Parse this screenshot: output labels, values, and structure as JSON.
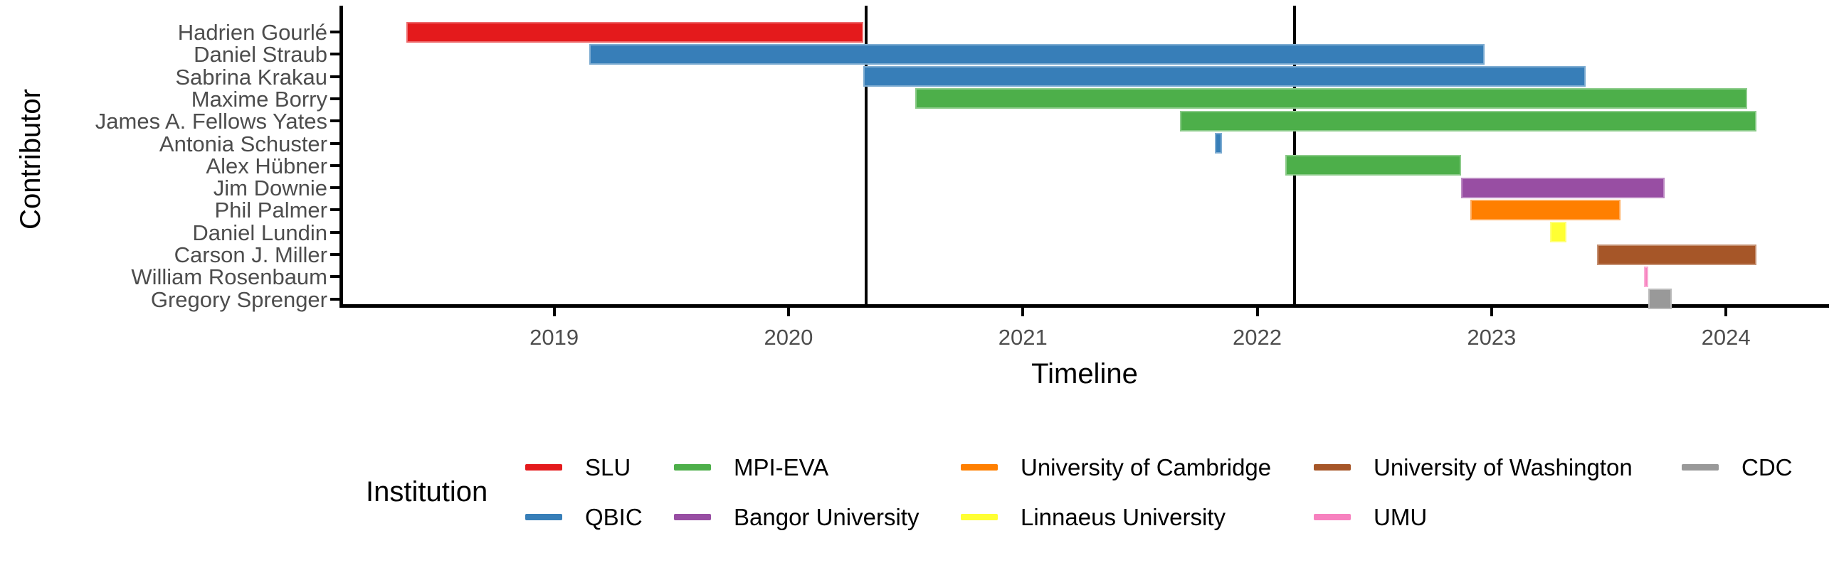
{
  "figure": {
    "y_axis_title": "Contributor",
    "x_axis_title": "Timeline",
    "legend_title": "Institution"
  },
  "chart_data": {
    "type": "bar",
    "subtype": "gantt-timeline",
    "title": "",
    "xlabel": "Timeline",
    "ylabel": "Contributor",
    "x_domain": [
      2018.09,
      2024.44
    ],
    "x_ticks": [
      2019,
      2020,
      2021,
      2022,
      2023,
      2024
    ],
    "grid": false,
    "legend_position": "bottom",
    "event_lines_x": [
      2020.33,
      2022.16
    ],
    "rows": [
      {
        "contributor": "Hadrien Gourlé",
        "institution": "SLU",
        "start": 2018.37,
        "end": 2020.32
      },
      {
        "contributor": "Daniel Straub",
        "institution": "QBIC",
        "start": 2019.15,
        "end": 2022.97
      },
      {
        "contributor": "Sabrina Krakau",
        "institution": "QBIC",
        "start": 2020.32,
        "end": 2023.4
      },
      {
        "contributor": "Maxime Borry",
        "institution": "MPI-EVA",
        "start": 2020.54,
        "end": 2024.09
      },
      {
        "contributor": "James A. Fellows Yates",
        "institution": "MPI-EVA",
        "start": 2021.67,
        "end": 2024.13
      },
      {
        "contributor": "Antonia Schuster",
        "institution": "QBIC",
        "start": 2021.82,
        "end": 2021.85
      },
      {
        "contributor": "Alex Hübner",
        "institution": "MPI-EVA",
        "start": 2022.12,
        "end": 2022.87
      },
      {
        "contributor": "Jim Downie",
        "institution": "Bangor University",
        "start": 2022.87,
        "end": 2023.74
      },
      {
        "contributor": "Phil Palmer",
        "institution": "University of Cambridge",
        "start": 2022.91,
        "end": 2023.55
      },
      {
        "contributor": "Daniel Lundin",
        "institution": "Linnaeus University",
        "start": 2023.25,
        "end": 2023.32
      },
      {
        "contributor": "Carson J. Miller",
        "institution": "University of Washington",
        "start": 2023.45,
        "end": 2024.13
      },
      {
        "contributor": "William Rosenbaum",
        "institution": "UMU",
        "start": 2023.65,
        "end": 2023.67
      },
      {
        "contributor": "Gregory Sprenger",
        "institution": "CDC",
        "start": 2023.67,
        "end": 2023.77
      }
    ],
    "institution_colors": {
      "SLU": "#E41A1C",
      "QBIC": "#377EB8",
      "MPI-EVA": "#4DAF4A",
      "Bangor University": "#984EA3",
      "University of Cambridge": "#FF7F00",
      "Linnaeus University": "#FFFF33",
      "University of Washington": "#A65628",
      "UMU": "#F781BF",
      "CDC": "#999999"
    },
    "legend_columns": [
      [
        "SLU",
        "QBIC"
      ],
      [
        "MPI-EVA",
        "Bangor University"
      ],
      [
        "University of Cambridge",
        "Linnaeus University"
      ],
      [
        "University of Washington",
        "UMU"
      ],
      [
        "CDC"
      ]
    ]
  },
  "style_colors": {
    "axis_text": "#4d4d4d",
    "axis_line": "#000000",
    "background": "#ffffff"
  }
}
